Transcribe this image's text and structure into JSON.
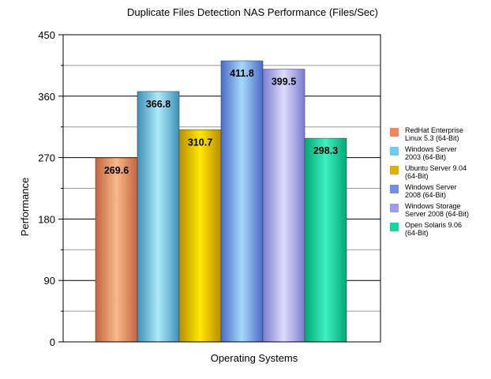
{
  "chart_data": {
    "type": "bar",
    "title": "Duplicate Files Detection NAS Performance (Files/Sec)",
    "xlabel": "Operating Systems",
    "ylabel": "Performance",
    "ylim": [
      0,
      450
    ],
    "yticks": [
      0,
      90,
      180,
      270,
      360,
      450
    ],
    "grid": true,
    "legend_position": "right",
    "series": [
      {
        "name": "RedHat Enterprise\nLinux 5.3 (64-Bit)",
        "value": 269.6,
        "label": "269.6",
        "color": "#f4845c",
        "light": "#f8b889",
        "dark": "#c2653e"
      },
      {
        "name": "Windows Server\n2003 (64-Bit)",
        "value": 366.8,
        "label": "366.8",
        "color": "#6ecbf2",
        "light": "#aeeafa",
        "dark": "#3d90b8"
      },
      {
        "name": "Ubuntu Server 9.04\n(64-Bit)",
        "value": 310.7,
        "label": "310.7",
        "color": "#e0b000",
        "light": "#ffe800",
        "dark": "#b88e00"
      },
      {
        "name": "Windows Server\n2008 (64-Bit)",
        "value": 411.8,
        "label": "411.8",
        "color": "#6d8fe4",
        "light": "#a6d8f8",
        "dark": "#4c6bc8"
      },
      {
        "name": "Windows Storage\nServer 2008 (64-Bit)",
        "value": 399.5,
        "label": "399.5",
        "color": "#9c9cf0",
        "light": "#dcdcfc",
        "dark": "#7b7bd2"
      },
      {
        "name": "Open Solaris 9.06\n(64-Bit)",
        "value": 298.3,
        "label": "298.3",
        "color": "#10d8a0",
        "light": "#3ef0c0",
        "dark": "#00a874"
      }
    ]
  }
}
